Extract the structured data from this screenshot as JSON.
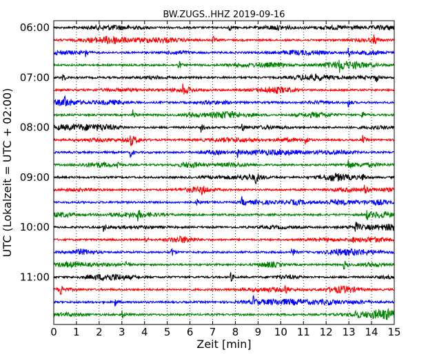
{
  "chart_data": {
    "type": "line",
    "title": "BW.ZUGS..HHZ 2019-09-16",
    "xlabel": "Zeit  [min]",
    "ylabel": "UTC (Lokalzeit = UTC + 02:00)",
    "xlim": [
      0,
      15
    ],
    "x_ticks": [
      "0",
      "1",
      "2",
      "3",
      "4",
      "5",
      "6",
      "7",
      "8",
      "9",
      "10",
      "11",
      "12",
      "13",
      "14",
      "15"
    ],
    "y_ticks": [
      "06:00",
      "07:00",
      "08:00",
      "09:00",
      "10:00",
      "11:00"
    ],
    "trace_interval_min": 15,
    "first_trace": "06:00",
    "grid": "vertical dotted",
    "trace_colors": [
      "#000000",
      "#ff0000",
      "#0000ff",
      "#008000"
    ],
    "traces": [
      {
        "start": "06:00",
        "events_min": [
          7.7
        ]
      },
      {
        "start": "06:15",
        "events_min": [
          7.0,
          14.1
        ]
      },
      {
        "start": "06:30",
        "events_min": [
          1.4,
          13.0
        ]
      },
      {
        "start": "06:45",
        "events_min": [
          5.5,
          12.6
        ]
      },
      {
        "start": "07:00",
        "events_min": [
          0.4,
          14.2
        ]
      },
      {
        "start": "07:15",
        "events_min": [
          5.7
        ]
      },
      {
        "start": "07:30",
        "events_min": [
          0.5,
          13.0
        ]
      },
      {
        "start": "07:45",
        "events_min": [
          3.5,
          13.6
        ]
      },
      {
        "start": "08:00",
        "events_min": [
          6.5,
          8.3
        ]
      },
      {
        "start": "08:15",
        "events_min": [
          3.4,
          11.1,
          13.6
        ]
      },
      {
        "start": "08:30",
        "events_min": [
          3.4,
          8.1
        ]
      },
      {
        "start": "08:45",
        "events_min": [
          2.8,
          13.0
        ]
      },
      {
        "start": "09:00",
        "events_min": [
          8.9,
          13.6
        ]
      },
      {
        "start": "09:15",
        "events_min": [
          6.5,
          13.7
        ]
      },
      {
        "start": "09:30",
        "events_min": [
          6.3,
          8.3
        ]
      },
      {
        "start": "09:45",
        "events_min": [
          3.7,
          13.8
        ]
      },
      {
        "start": "10:00",
        "events_min": [
          2.2,
          13.3
        ]
      },
      {
        "start": "10:15",
        "events_min": [
          4.0,
          13.1
        ]
      },
      {
        "start": "10:30",
        "events_min": [
          5.2,
          10.5
        ]
      },
      {
        "start": "10:45",
        "events_min": [
          3.2,
          12.8
        ]
      },
      {
        "start": "11:00",
        "events_min": [
          7.8
        ]
      },
      {
        "start": "11:15",
        "events_min": [
          0.3,
          10.2
        ]
      },
      {
        "start": "11:30",
        "events_min": [
          2.7,
          8.8
        ]
      },
      {
        "start": "11:45",
        "events_min": [
          3.0,
          13.3
        ]
      }
    ]
  }
}
